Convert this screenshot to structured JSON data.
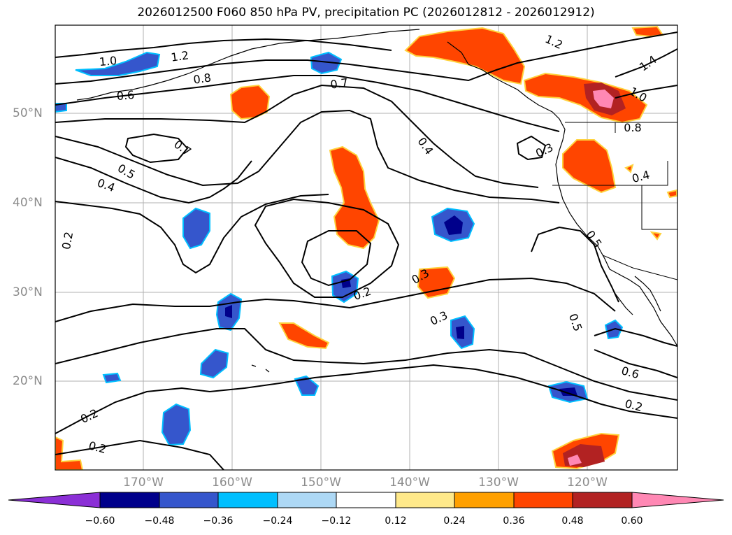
{
  "title": "2026012500 F060 850 hPa PV, precipitation PC (2026012812 - 2026012912)",
  "lat_labels": [
    "50°N",
    "40°N",
    "30°N",
    "20°N"
  ],
  "lon_labels": [
    "170°W",
    "160°W",
    "150°W",
    "140°W",
    "130°W",
    "120°W"
  ],
  "colorbar": {
    "tick_labels": [
      "−0.60",
      "−0.48",
      "−0.36",
      "−0.24",
      "−0.12",
      "0.12",
      "0.24",
      "0.36",
      "0.48",
      "0.60"
    ],
    "colors": [
      "#8b2fd6",
      "#00008b",
      "#3556cc",
      "#00bfff",
      "#add8f5",
      "#ffffff",
      "#ffe98a",
      "#ffa000",
      "#ff4500",
      "#b22222",
      "#ff88b4"
    ]
  },
  "contour_labels": [
    "1.0",
    "1.2",
    "0.8",
    "0.6",
    "0.7",
    "1.2",
    "1.4",
    "1.0",
    "0.8",
    "0.7",
    "0.5",
    "0.4",
    "0.4",
    "0.3",
    "0.4",
    "0.2",
    "0.3",
    "0.2",
    "0.3",
    "0.5",
    "0.6",
    "0.2",
    "0.2",
    "0.2",
    "0.5"
  ],
  "colors": {
    "positive_strong": "#ff4500",
    "positive_max": "#b22222",
    "positive_peak": "#ff88b4",
    "negative_mid": "#3556cc",
    "negative_strong": "#00008b",
    "negative_light": "#00bfff",
    "grid": "#b0b0b0",
    "contour": "#000000"
  }
}
